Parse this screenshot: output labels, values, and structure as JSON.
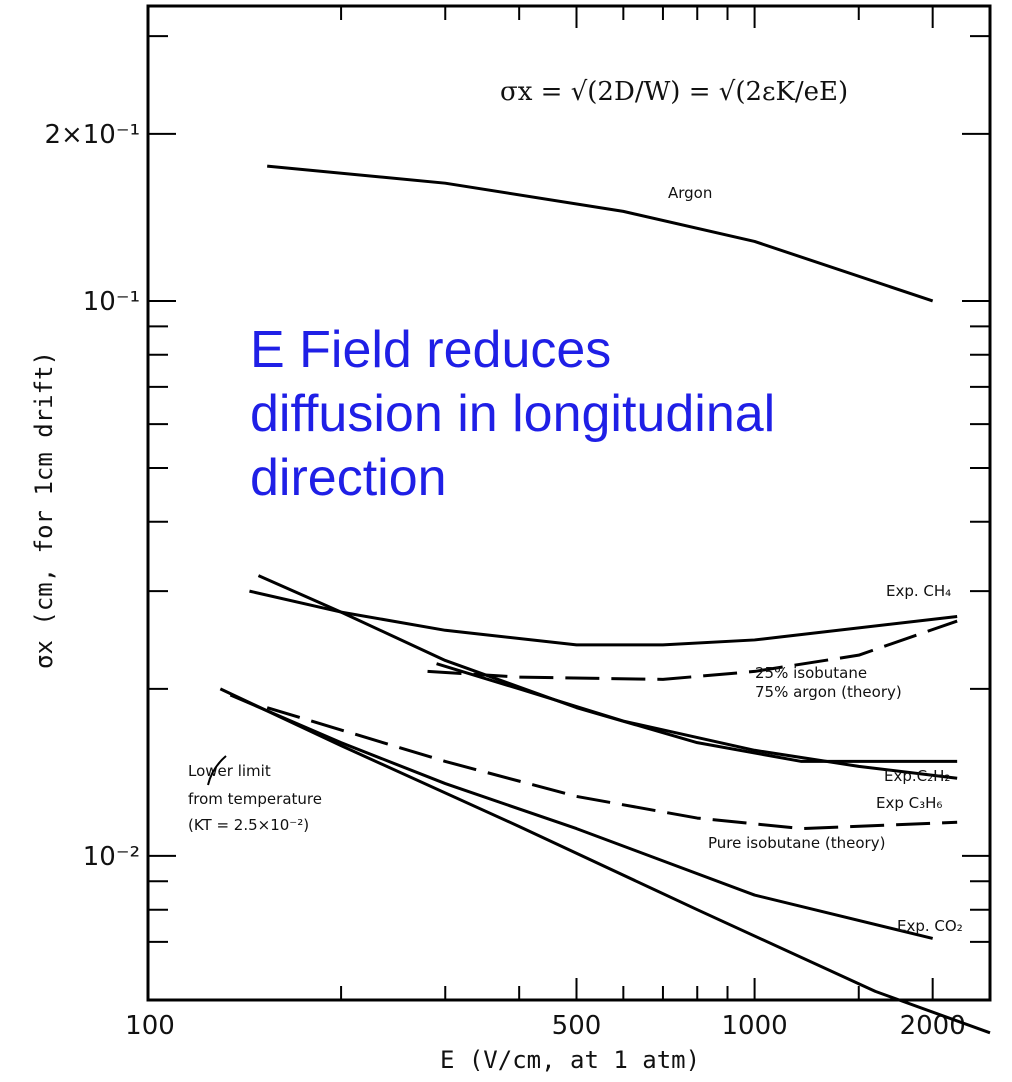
{
  "chart_data": {
    "type": "line",
    "xlabel": "E (V/cm, at 1 atm)",
    "ylabel": "σx (cm, for 1cm drift)",
    "x_scale": "log",
    "y_scale": "log",
    "xlim": [
      100,
      2500
    ],
    "ylim": [
      0.0055,
      0.34
    ],
    "x_ticks": [
      100,
      500,
      1000,
      2000
    ],
    "x_tick_labels": [
      "100",
      "500",
      "1000",
      "2000"
    ],
    "y_ticks": [
      0.2,
      0.1,
      0.01
    ],
    "y_tick_labels": [
      "2×10⁻¹",
      "10⁻¹",
      "10⁻²"
    ],
    "formula": "σx = √(2D/W) = √(2εK/eE)",
    "annotation_lines": [
      "E Field reduces",
      "diffusion in longitudinal",
      "direction"
    ],
    "series": [
      {
        "name": "Argon",
        "style": "solid",
        "x": [
          150,
          300,
          600,
          1000,
          2000
        ],
        "y": [
          0.175,
          0.163,
          0.145,
          0.128,
          0.1
        ]
      },
      {
        "name": "Exp. CH4",
        "style": "solid",
        "x": [
          140,
          200,
          300,
          500,
          700,
          1000,
          2200
        ],
        "y": [
          0.03,
          0.0275,
          0.0255,
          0.024,
          0.024,
          0.0245,
          0.027
        ]
      },
      {
        "name": "25% isobutane 75% argon (theory)",
        "style": "dashed",
        "x": [
          280,
          400,
          700,
          1000,
          1500,
          2200
        ],
        "y": [
          0.0215,
          0.021,
          0.0208,
          0.0215,
          0.023,
          0.0265
        ]
      },
      {
        "name": "Exp. C2H2",
        "style": "solid",
        "x": [
          145,
          200,
          300,
          500,
          800,
          1200,
          2200
        ],
        "y": [
          0.032,
          0.0275,
          0.0225,
          0.0185,
          0.016,
          0.0148,
          0.0148
        ]
      },
      {
        "name": "Exp C3H6",
        "style": "solid",
        "x": [
          290,
          400,
          600,
          1000,
          1500,
          2200
        ],
        "y": [
          0.0222,
          0.02,
          0.0175,
          0.0155,
          0.0145,
          0.0138
        ]
      },
      {
        "name": "Pure isobutane (theory)",
        "style": "dashed",
        "x": [
          150,
          300,
          500,
          800,
          1200,
          2200
        ],
        "y": [
          0.0185,
          0.0148,
          0.0128,
          0.0117,
          0.0112,
          0.0115
        ]
      },
      {
        "name": "Exp. CO2",
        "style": "solid",
        "x": [
          130,
          200,
          300,
          500,
          1000,
          2000
        ],
        "y": [
          0.0195,
          0.016,
          0.0135,
          0.0112,
          0.0085,
          0.0071
        ]
      },
      {
        "name": "",
        "style": "solid",
        "x": [
          125,
          200,
          400,
          800,
          1600,
          2500
        ],
        "y": [
          0.02,
          0.0158,
          0.0113,
          0.008,
          0.0057,
          0.0048
        ]
      }
    ],
    "series_label_lines": [
      [
        "Argon"
      ],
      [
        "Exp. CH₄"
      ],
      [
        "25% isobutane",
        "75% argon    (theory)"
      ],
      [
        "Exp.C₂H₂"
      ],
      [
        "Exp C₃H₆"
      ],
      [
        "Pure isobutane (theory)"
      ],
      [
        "Exp. CO₂"
      ],
      [
        "Lower limit",
        "from temperature",
        "(KT = 2.5×10⁻²)"
      ]
    ]
  }
}
